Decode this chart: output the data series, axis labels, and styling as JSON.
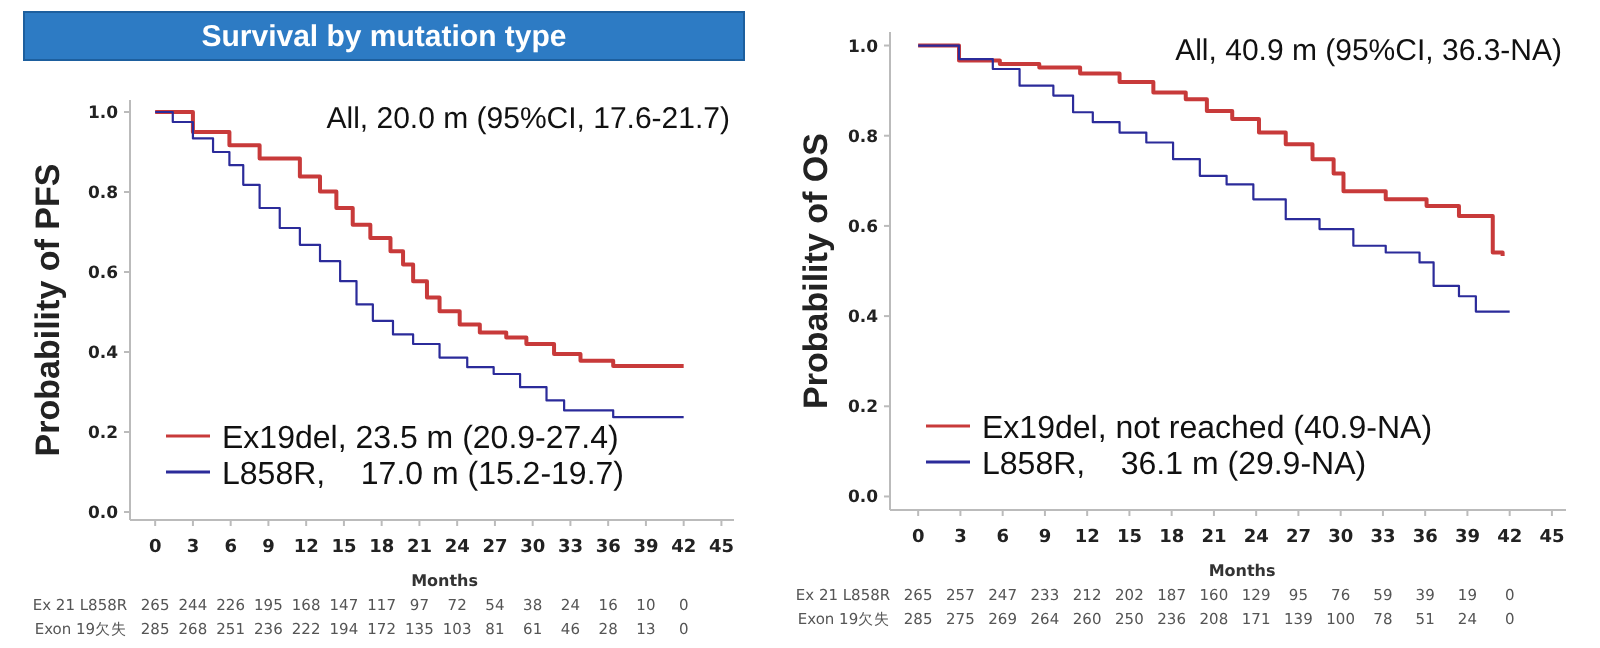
{
  "chart_data": [
    {
      "type": "step",
      "title": "Survival by mutation type",
      "xlabel": "Months",
      "ylabel": "Probability of PFS",
      "xlim": [
        -2,
        46
      ],
      "ylim": [
        -0.02,
        1.03
      ],
      "xticks": [
        0,
        3,
        6,
        9,
        12,
        15,
        18,
        21,
        24,
        27,
        30,
        33,
        36,
        39,
        42,
        45
      ],
      "yticks": [
        {
          "value": 0,
          "label": "0.0"
        },
        {
          "value": 0.2,
          "label": "0.2"
        },
        {
          "value": 0.4,
          "label": "0.4"
        },
        {
          "value": 0.6,
          "label": "0.6"
        },
        {
          "value": 0.8,
          "label": "0.8"
        },
        {
          "value": 1,
          "label": "1.0"
        }
      ],
      "legend": "bottom left",
      "grid": false,
      "annotations": [
        "All, 20.0 m (95%CI, 17.6-21.7)",
        "Ex 21 L858R",
        "265 244 226 195 168 147 117 97 72 54 38 24 16 10 0",
        "Exon 19欠失",
        "285 268 251 236 222 194 172 135 103 81 61 46 28 13 0"
      ],
      "series": [
        {
          "name": "Ex19del, 23.5 m (20.9-27.4)",
          "color": "#c83a3a",
          "x": [
            0,
            3.0,
            5.9,
            8.3,
            11.5,
            13.1,
            14.4,
            15.7,
            17.1,
            18.7,
            19.7,
            20.5,
            21.6,
            22.6,
            24.2,
            25.8,
            27.9,
            29.5,
            31.7,
            33.8,
            36.4,
            42
          ],
          "values": [
            1.0,
            0.95,
            0.917,
            0.884,
            0.839,
            0.801,
            0.76,
            0.718,
            0.685,
            0.652,
            0.619,
            0.577,
            0.536,
            0.502,
            0.469,
            0.449,
            0.436,
            0.42,
            0.395,
            0.378,
            0.365,
            0.365
          ]
        },
        {
          "name": "L858R,    17.0 m (15.2-19.7)",
          "color": "#2b2b9a",
          "x": [
            0,
            1.4,
            3.0,
            4.6,
            5.9,
            7.0,
            8.3,
            9.9,
            11.5,
            13.1,
            14.7,
            16.0,
            17.3,
            18.9,
            20.5,
            22.6,
            24.8,
            26.9,
            29.0,
            31.1,
            32.5,
            35.4,
            36.4,
            42
          ],
          "values": [
            1.0,
            0.975,
            0.934,
            0.9,
            0.867,
            0.818,
            0.76,
            0.71,
            0.668,
            0.627,
            0.577,
            0.519,
            0.478,
            0.444,
            0.42,
            0.386,
            0.362,
            0.345,
            0.312,
            0.279,
            0.254,
            0.254,
            0.237,
            0.237
          ]
        }
      ]
    },
    {
      "type": "step",
      "xlabel": "Months",
      "ylabel": "Probability of OS",
      "xlim": [
        -2,
        46
      ],
      "ylim": [
        -0.03,
        1.03
      ],
      "xticks": [
        0,
        3,
        6,
        9,
        12,
        15,
        18,
        21,
        24,
        27,
        30,
        33,
        36,
        39,
        42,
        45
      ],
      "yticks": [
        {
          "value": 0,
          "label": "0.0"
        },
        {
          "value": 0.2,
          "label": "0.2"
        },
        {
          "value": 0.4,
          "label": "0.4"
        },
        {
          "value": 0.6,
          "label": "0.6"
        },
        {
          "value": 0.8,
          "label": "0.8"
        },
        {
          "value": 1,
          "label": "1.0"
        }
      ],
      "legend": "bottom left",
      "grid": false,
      "annotations": [
        "All, 40.9 m (95%CI, 36.3-NA)",
        "Ex 21 L858R",
        "265 257 247 233 212 202 187 160 129 95 76 59 39 19 0",
        "Exon 19欠失",
        "285 275 269 264 260 250 236 208 171 139 100 78 51 24 0"
      ],
      "series": [
        {
          "name": "Ex19del, not reached (40.9-NA)",
          "color": "#c83a3a",
          "x": [
            0,
            2.9,
            5.8,
            8.6,
            11.5,
            14.3,
            16.7,
            19.0,
            20.5,
            22.3,
            24.2,
            26.1,
            28.0,
            29.5,
            30.2,
            32.3,
            33.2,
            36.1,
            37.7,
            38.4,
            40.6,
            40.8,
            41.5
          ],
          "values": [
            1.0,
            0.967,
            0.959,
            0.951,
            0.938,
            0.919,
            0.896,
            0.881,
            0.855,
            0.837,
            0.807,
            0.781,
            0.748,
            0.716,
            0.677,
            0.677,
            0.659,
            0.644,
            0.644,
            0.622,
            0.622,
            0.541,
            0.533
          ]
        },
        {
          "name": "L858R,    36.1 m (29.9-NA)",
          "color": "#2b2b9a",
          "x": [
            0,
            2.9,
            5.3,
            7.2,
            9.6,
            11.0,
            12.4,
            14.3,
            16.2,
            18.1,
            20.0,
            21.9,
            23.8,
            26.1,
            28.5,
            30.9,
            33.2,
            35.6,
            36.6,
            38.4,
            39.6,
            42
          ],
          "values": [
            1.0,
            0.97,
            0.948,
            0.911,
            0.889,
            0.852,
            0.83,
            0.807,
            0.785,
            0.748,
            0.711,
            0.692,
            0.659,
            0.615,
            0.593,
            0.556,
            0.541,
            0.519,
            0.467,
            0.444,
            0.41,
            0.41
          ]
        }
      ]
    }
  ]
}
